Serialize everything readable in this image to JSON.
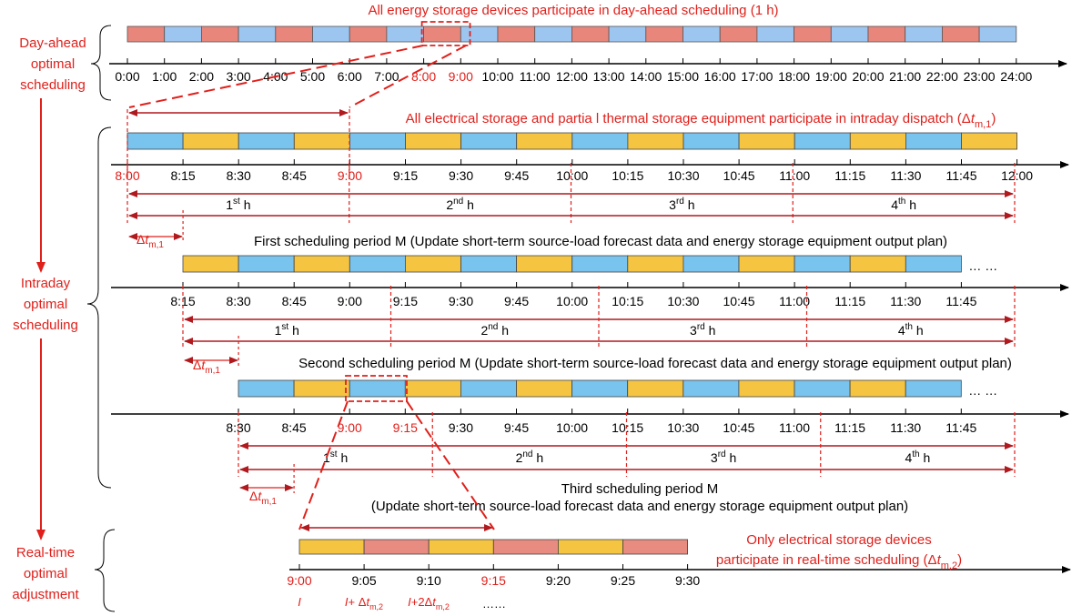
{
  "colors": {
    "red": "#e0201b",
    "dark_red": "#b0191e",
    "black": "#000000",
    "pink": "#e8867b",
    "blue": "#79c3ef",
    "blue_light": "#9cc6f0",
    "yellow": "#f5c542",
    "salmon": "#e88b80"
  },
  "stage_labels": {
    "day_ahead": [
      "Day-ahead",
      "optimal",
      "scheduling"
    ],
    "intraday": [
      "Intraday",
      "optimal",
      "scheduling"
    ],
    "realtime": [
      "Real-time",
      "optimal",
      "adjustment"
    ]
  },
  "day_ahead": {
    "title": "All energy storage devices participate in day-ahead scheduling (1 h)",
    "ticks": [
      "0:00",
      "1:00",
      "2:00",
      "3:00",
      "4:00",
      "5:00",
      "6:00",
      "7:00",
      "8:00",
      "9:00",
      "10:00",
      "11:00",
      "12:00",
      "13:00",
      "14:00",
      "15:00",
      "16:00",
      "17:00",
      "18:00",
      "19:00",
      "20:00",
      "21:00",
      "22:00",
      "23:00",
      "24:00"
    ],
    "highlight_ticks": [
      "8:00",
      "9:00"
    ],
    "segment_colors": [
      "pink",
      "blue"
    ]
  },
  "intraday": {
    "title_main": "All electrical storage and partia l thermal storage equipment participate in intraday dispatch (Δ",
    "title_t": "t",
    "title_sub": "m,1",
    "title_close": ")",
    "hour_labels": [
      {
        "num": "1",
        "sup": "st",
        "h": "h"
      },
      {
        "num": "2",
        "sup": "nd",
        "h": "h"
      },
      {
        "num": "3",
        "sup": "rd",
        "h": "h"
      },
      {
        "num": "4",
        "sup": "th",
        "h": "h"
      }
    ],
    "delta_label": {
      "delta": "Δ",
      "t": "t",
      "sub": "m,1"
    },
    "ellipsis": "… …",
    "periods": [
      {
        "ticks": [
          "8:00",
          "8:15",
          "8:30",
          "8:45",
          "9:00",
          "9:15",
          "9:30",
          "9:45",
          "10:00",
          "10:15",
          "10:30",
          "10:45",
          "11:00",
          "11:15",
          "11:30",
          "11:45",
          "12:00"
        ],
        "red_ticks": [
          "8:00",
          "9:00"
        ],
        "caption": "First scheduling period M (Update short-term source-load forecast data and energy storage equipment output plan)"
      },
      {
        "ticks": [
          "8:15",
          "8:30",
          "8:45",
          "9:00",
          "9:15",
          "9:30",
          "9:45",
          "10:00",
          "10:15",
          "10:30",
          "10:45",
          "11:00",
          "11:15",
          "11:30",
          "11:45"
        ],
        "red_ticks": [],
        "caption": "Second scheduling period M (Update short-term source-load forecast data and energy storage equipment output plan)"
      },
      {
        "ticks": [
          "8:30",
          "8:45",
          "9:00",
          "9:15",
          "9:30",
          "9:45",
          "10:00",
          "10:15",
          "10:30",
          "10:45",
          "11:00",
          "11:15",
          "11:30",
          "11:45"
        ],
        "red_ticks": [
          "9:00",
          "9:15"
        ],
        "caption_line1": "Third scheduling period M",
        "caption_line2": "(Update short-term source-load forecast data and energy storage equipment output plan)"
      }
    ]
  },
  "realtime": {
    "title_line1": "Only electrical storage devices",
    "title_line2_main": "participate in real-time scheduling (Δ",
    "title_line2_t": "t",
    "title_line2_sub": "m,2",
    "title_line2_close": ")",
    "ticks": [
      "9:00",
      "9:05",
      "9:10",
      "9:15",
      "9:20",
      "9:25",
      "9:30"
    ],
    "red_ticks": [
      "9:00",
      "9:15"
    ],
    "step_labels": [
      {
        "pre": "I",
        "mid": "",
        "t": "",
        "sub": ""
      },
      {
        "pre": "I",
        "mid": "+ Δ",
        "t": "t",
        "sub": "m,2"
      },
      {
        "pre": "I",
        "mid": "+2Δ",
        "t": "t",
        "sub": "m,2"
      }
    ],
    "dots": "……"
  }
}
